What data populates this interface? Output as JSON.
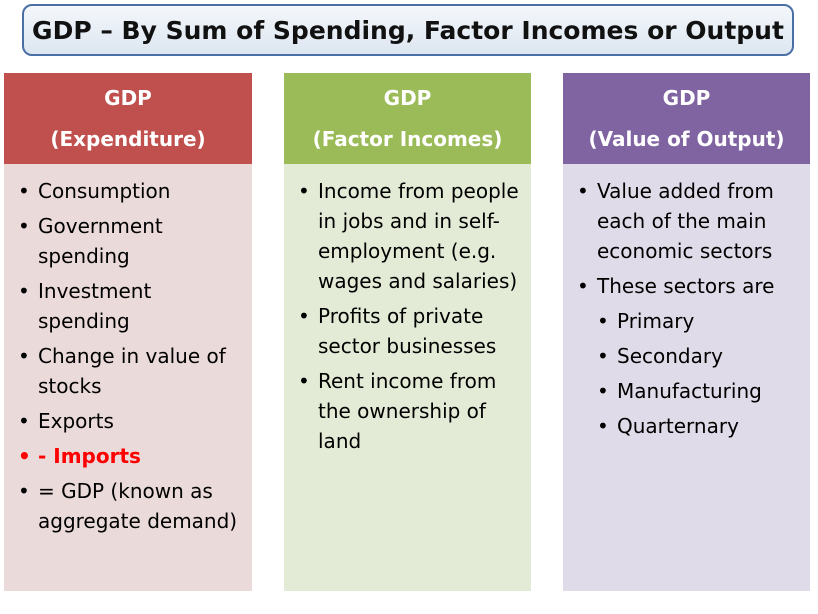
{
  "title": "GDP – By Sum of Spending, Factor Incomes or Output",
  "columns": [
    {
      "heading": "GDP",
      "subheading": "(Expenditure)",
      "header_color": "#c0504d",
      "body_color": "#eadad9",
      "items": [
        {
          "text": "Consumption"
        },
        {
          "text": "Government spending"
        },
        {
          "text": "Investment spending"
        },
        {
          "text": "Change in value of stocks"
        },
        {
          "text": "Exports"
        },
        {
          "text": "- Imports",
          "highlight": true,
          "color": "#ff0000"
        },
        {
          "text": "= GDP (known as aggregate demand)"
        }
      ]
    },
    {
      "heading": "GDP",
      "subheading": "(Factor Incomes)",
      "header_color": "#9bbb59",
      "body_color": "#e3ebd6",
      "items": [
        {
          "text": "Income from people in jobs and in self-employment (e.g. wages and salaries)"
        },
        {
          "text": "Profits of private sector businesses"
        },
        {
          "text": "Rent income from the ownership of land"
        }
      ]
    },
    {
      "heading": "GDP",
      "subheading": "(Value of Output)",
      "header_color": "#8064a2",
      "body_color": "#e0dbe8",
      "items": [
        {
          "text": "Value added from each of the main economic sectors"
        },
        {
          "text": "These sectors are"
        },
        {
          "text": "Primary",
          "sub": true
        },
        {
          "text": "Secondary",
          "sub": true
        },
        {
          "text": "Manufacturing",
          "sub": true
        },
        {
          "text": "Quarternary",
          "sub": true
        }
      ]
    }
  ]
}
